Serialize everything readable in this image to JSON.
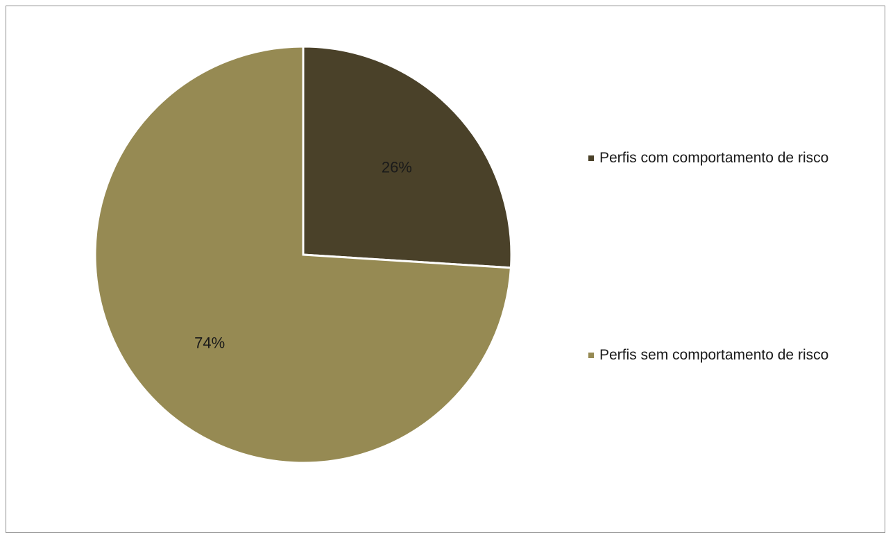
{
  "chart_data": {
    "type": "pie",
    "title": "",
    "slices": [
      {
        "name": "Perfis com comportamento de risco",
        "value": 26,
        "label": "26%",
        "color": "#4a4129"
      },
      {
        "name": "Perfis sem comportamento de risco",
        "value": 74,
        "label": "74%",
        "color": "#968a53"
      }
    ],
    "legend_position": "right"
  }
}
